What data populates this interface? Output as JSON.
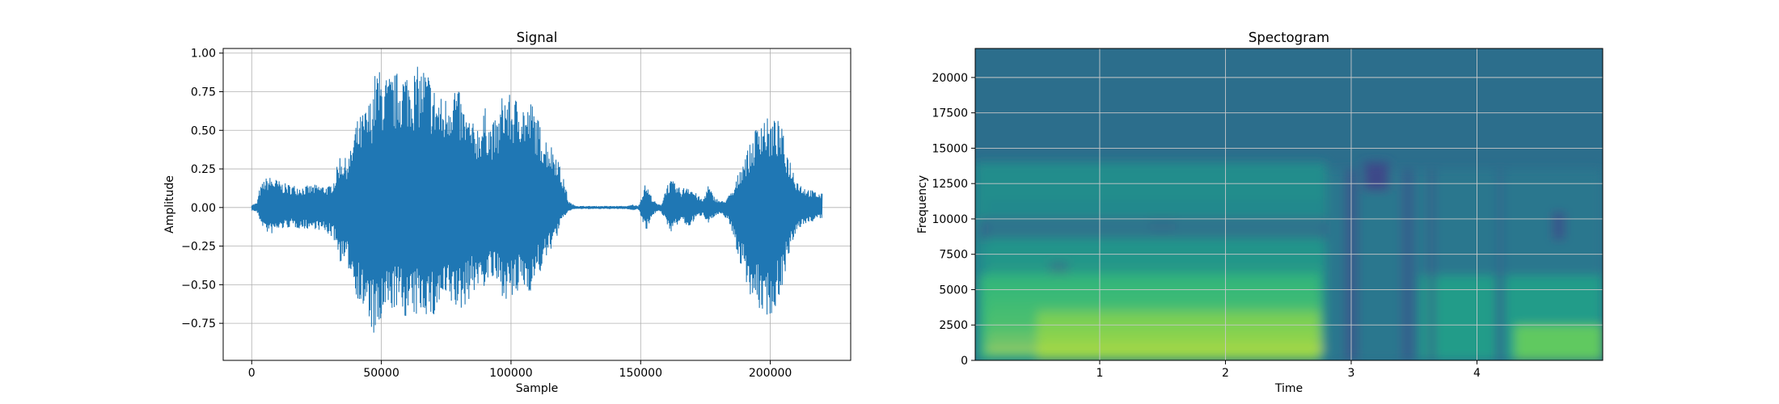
{
  "chart_data": [
    {
      "type": "line",
      "title": "Signal",
      "xlabel": "Sample",
      "ylabel": "Amplitude",
      "xlim": [
        -11000,
        231000
      ],
      "ylim": [
        -0.99,
        1.03
      ],
      "xticks": [
        0,
        50000,
        100000,
        150000,
        200000
      ],
      "xtick_labels": [
        "0",
        "50000",
        "100000",
        "150000",
        "200000"
      ],
      "yticks": [
        -0.75,
        -0.5,
        -0.25,
        0.0,
        0.25,
        0.5,
        0.75,
        1.0
      ],
      "ytick_labels": [
        "−0.75",
        "−0.50",
        "−0.25",
        "0.00",
        "0.25",
        "0.50",
        "0.75",
        "1.00"
      ],
      "grid": true,
      "color": "#1f77b4",
      "series": [
        {
          "envelope_x": [
            0,
            2000,
            3000,
            5000,
            7000,
            9000,
            12000,
            15000,
            20000,
            25000,
            30000,
            32000,
            34000,
            36000,
            38000,
            40000,
            42000,
            44000,
            46000,
            48000,
            50000,
            52000,
            55000,
            58000,
            62000,
            66000,
            68000,
            70000,
            72000,
            74000,
            76000,
            78000,
            80000,
            82000,
            85000,
            88000,
            90000,
            92000,
            95000,
            97000,
            100000,
            102000,
            104000,
            106000,
            108000,
            110000,
            112000,
            114000,
            116000,
            118000,
            119000,
            120000,
            121000,
            122000,
            123000,
            124000,
            126000,
            130000,
            140000,
            143000,
            145000,
            147000,
            149000,
            150000,
            151000,
            152000,
            153000,
            154000,
            155000,
            156000,
            157000,
            158000,
            160000,
            162000,
            164000,
            166000,
            168000,
            170000,
            172000,
            174000,
            176000,
            178000,
            180000,
            182000,
            184000,
            186000,
            188000,
            190000,
            192000,
            194000,
            196000,
            198000,
            200000,
            202000,
            204000,
            206000,
            208000,
            210000,
            212000,
            215000,
            218000,
            220000
          ],
          "upper": [
            0.02,
            0.03,
            0.12,
            0.19,
            0.2,
            0.19,
            0.16,
            0.15,
            0.14,
            0.15,
            0.14,
            0.2,
            0.35,
            0.32,
            0.36,
            0.55,
            0.6,
            0.65,
            0.72,
            0.92,
            0.88,
            0.86,
            0.87,
            0.91,
            0.9,
            0.93,
            0.9,
            0.8,
            0.75,
            0.7,
            0.78,
            0.85,
            0.75,
            0.65,
            0.55,
            0.55,
            0.65,
            0.55,
            0.58,
            0.78,
            0.72,
            0.72,
            0.74,
            0.65,
            0.7,
            0.6,
            0.5,
            0.45,
            0.4,
            0.36,
            0.25,
            0.2,
            0.15,
            0.05,
            0.03,
            0.02,
            0.01,
            0.01,
            0.01,
            0.01,
            0.01,
            0.02,
            0.01,
            0.05,
            0.12,
            0.16,
            0.12,
            0.08,
            0.05,
            0.03,
            0.02,
            0.02,
            0.15,
            0.18,
            0.14,
            0.12,
            0.16,
            0.12,
            0.08,
            0.05,
            0.15,
            0.08,
            0.05,
            0.04,
            0.08,
            0.12,
            0.25,
            0.35,
            0.4,
            0.5,
            0.62,
            0.6,
            0.56,
            0.58,
            0.55,
            0.4,
            0.3,
            0.2,
            0.15,
            0.12,
            0.1,
            0.09
          ],
          "lower": [
            -0.02,
            -0.03,
            -0.08,
            -0.15,
            -0.18,
            -0.16,
            -0.14,
            -0.13,
            -0.14,
            -0.14,
            -0.18,
            -0.22,
            -0.35,
            -0.38,
            -0.42,
            -0.55,
            -0.65,
            -0.72,
            -0.79,
            -0.9,
            -0.78,
            -0.72,
            -0.66,
            -0.7,
            -0.74,
            -0.68,
            -0.71,
            -0.75,
            -0.67,
            -0.63,
            -0.65,
            -0.65,
            -0.7,
            -0.65,
            -0.56,
            -0.52,
            -0.52,
            -0.46,
            -0.54,
            -0.58,
            -0.62,
            -0.6,
            -0.52,
            -0.54,
            -0.55,
            -0.44,
            -0.42,
            -0.32,
            -0.25,
            -0.18,
            -0.12,
            -0.08,
            -0.05,
            -0.03,
            -0.02,
            -0.01,
            -0.01,
            -0.01,
            -0.01,
            -0.01,
            -0.01,
            -0.02,
            -0.01,
            -0.05,
            -0.1,
            -0.15,
            -0.12,
            -0.07,
            -0.05,
            -0.03,
            -0.02,
            -0.03,
            -0.12,
            -0.16,
            -0.12,
            -0.08,
            -0.14,
            -0.1,
            -0.06,
            -0.05,
            -0.1,
            -0.07,
            -0.05,
            -0.05,
            -0.1,
            -0.2,
            -0.35,
            -0.45,
            -0.55,
            -0.65,
            -0.68,
            -0.7,
            -0.71,
            -0.67,
            -0.55,
            -0.4,
            -0.28,
            -0.18,
            -0.12,
            -0.1,
            -0.08,
            -0.07
          ]
        }
      ]
    },
    {
      "type": "heatmap",
      "title": "Spectogram",
      "xlabel": "Time",
      "ylabel": "Frequency",
      "xlim": [
        0.01,
        5.0
      ],
      "ylim": [
        0,
        22050
      ],
      "xticks": [
        1,
        2,
        3,
        4
      ],
      "xtick_labels": [
        "1",
        "2",
        "3",
        "4"
      ],
      "yticks": [
        0,
        2500,
        5000,
        7500,
        10000,
        12500,
        15000,
        17500,
        20000
      ],
      "ytick_labels": [
        "0",
        "2500",
        "5000",
        "7500",
        "10000",
        "12500",
        "15000",
        "17500",
        "20000"
      ],
      "grid": true,
      "colormap": "viridis",
      "background_color": "#2c6e8c",
      "regions": [
        {
          "t0": 0.01,
          "t1": 2.8,
          "f0": 0,
          "f1": 14000,
          "level": 0.55
        },
        {
          "t0": 2.8,
          "t1": 5.0,
          "f0": 0,
          "f1": 13500,
          "level": 0.45
        },
        {
          "t0": 0.05,
          "t1": 2.75,
          "f0": 0,
          "f1": 6000,
          "level": 0.75
        },
        {
          "t0": 0.5,
          "t1": 2.75,
          "f0": 0,
          "f1": 3500,
          "level": 0.9
        },
        {
          "t0": 3.55,
          "t1": 5.0,
          "f0": 0,
          "f1": 6000,
          "level": 0.62
        },
        {
          "t0": 4.3,
          "t1": 5.0,
          "f0": 0,
          "f1": 2500,
          "level": 0.85
        },
        {
          "t0": 0.05,
          "t1": 2.8,
          "f0": 8500,
          "f1": 10000,
          "level": 0.35
        },
        {
          "t0": 0.6,
          "t1": 0.75,
          "f0": 6000,
          "f1": 7000,
          "level": 0.35
        },
        {
          "t0": 1.4,
          "t1": 1.6,
          "f0": 9000,
          "f1": 10000,
          "level": 0.3
        },
        {
          "t0": 2.95,
          "t1": 3.05,
          "f0": 0,
          "f1": 13500,
          "level": 0.32
        },
        {
          "t0": 3.4,
          "t1": 3.5,
          "f0": 0,
          "f1": 13500,
          "level": 0.35
        },
        {
          "t0": 3.62,
          "t1": 3.66,
          "f0": 0,
          "f1": 13500,
          "level": 0.32
        },
        {
          "t0": 4.15,
          "t1": 4.22,
          "f0": 0,
          "f1": 13500,
          "level": 0.4
        },
        {
          "t0": 4.6,
          "t1": 4.7,
          "f0": 8500,
          "f1": 10500,
          "level": 0.3
        },
        {
          "t0": 3.1,
          "t1": 3.3,
          "f0": 12000,
          "f1": 14000,
          "level": 0.25
        }
      ],
      "harmonics": {
        "t0": 0.1,
        "t1": 2.78,
        "f_start": 800,
        "spacing": 780,
        "count": 14,
        "level": 0.95
      }
    }
  ]
}
